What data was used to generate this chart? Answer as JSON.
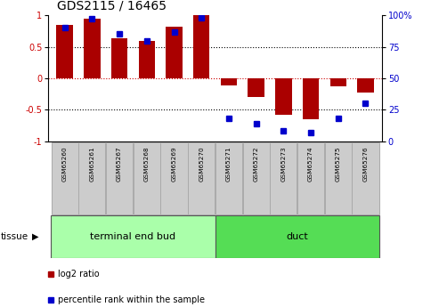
{
  "title": "GDS2115 / 16465",
  "samples": [
    "GSM65260",
    "GSM65261",
    "GSM65267",
    "GSM65268",
    "GSM65269",
    "GSM65270",
    "GSM65271",
    "GSM65272",
    "GSM65273",
    "GSM65274",
    "GSM65275",
    "GSM65276"
  ],
  "log2_ratio": [
    0.85,
    0.95,
    0.63,
    0.6,
    0.82,
    1.0,
    -0.12,
    -0.3,
    -0.58,
    -0.65,
    -0.13,
    -0.22
  ],
  "percentile_rank": [
    90,
    97,
    85,
    80,
    87,
    98,
    18,
    14,
    8,
    7,
    18,
    30
  ],
  "groups": [
    {
      "label": "terminal end bud",
      "start": 0,
      "end": 6,
      "color": "#aaffaa"
    },
    {
      "label": "duct",
      "start": 6,
      "end": 12,
      "color": "#55dd55"
    }
  ],
  "bar_color": "#aa0000",
  "dot_color": "#0000cc",
  "ylim_left": [
    -1,
    1
  ],
  "ylim_right": [
    0,
    100
  ],
  "yticks_left": [
    -1,
    -0.5,
    0,
    0.5,
    1
  ],
  "yticks_right": [
    0,
    25,
    50,
    75,
    100
  ],
  "ytick_labels_left": [
    "-1",
    "-0.5",
    "0",
    "0.5",
    "1"
  ],
  "ytick_labels_right": [
    "0",
    "25",
    "50",
    "75",
    "100%"
  ],
  "hline_dotted": [
    0.5,
    -0.5
  ],
  "hline_red_dotted": 0,
  "tissue_label": "tissue",
  "legend_items": [
    {
      "color": "#aa0000",
      "label": "log2 ratio"
    },
    {
      "color": "#0000cc",
      "label": "percentile rank within the sample"
    }
  ],
  "sample_box_color": "#cccccc",
  "sample_box_edge": "#aaaaaa"
}
